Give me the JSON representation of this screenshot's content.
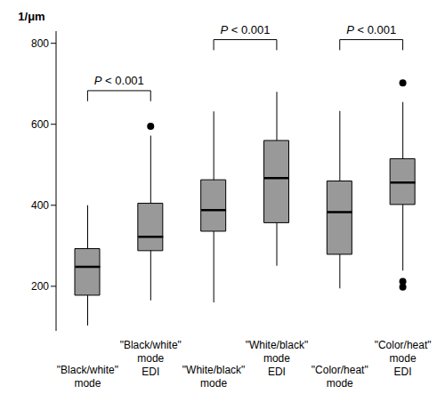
{
  "chart_data": {
    "type": "box",
    "y_label": "1/μm",
    "categories": [
      "\"Black/white\" mode",
      "\"Black/white\" mode EDI",
      "\"White/black\" mode",
      "\"White/black\" mode EDI",
      "\"Color/heat\" mode",
      "\"Color/heat\" mode EDI"
    ],
    "boxes": [
      {
        "min": 103,
        "q1": 178,
        "median": 248,
        "q3": 293,
        "max": 400,
        "outliers": []
      },
      {
        "min": 165,
        "q1": 288,
        "median": 322,
        "q3": 405,
        "max": 572,
        "outliers": [
          595
        ]
      },
      {
        "min": 160,
        "q1": 336,
        "median": 388,
        "q3": 463,
        "max": 632,
        "outliers": []
      },
      {
        "min": 251,
        "q1": 357,
        "median": 467,
        "q3": 560,
        "max": 680,
        "outliers": []
      },
      {
        "min": 195,
        "q1": 279,
        "median": 383,
        "q3": 460,
        "max": 633,
        "outliers": []
      },
      {
        "min": 239,
        "q1": 402,
        "median": 456,
        "q3": 515,
        "max": 655,
        "outliers": [
          702,
          212,
          198
        ]
      }
    ],
    "color": "#999999",
    "ylim": [
      90,
      830
    ],
    "yticks": [
      200,
      400,
      600,
      800
    ],
    "grid": false,
    "annotations": [
      {
        "text": "P < 0.001",
        "from": 0,
        "to": 1,
        "y": 683
      },
      {
        "text": "P < 0.001",
        "from": 2,
        "to": 3,
        "y": 809
      },
      {
        "text": "P < 0.001",
        "from": 4,
        "to": 5,
        "y": 809
      }
    ]
  }
}
